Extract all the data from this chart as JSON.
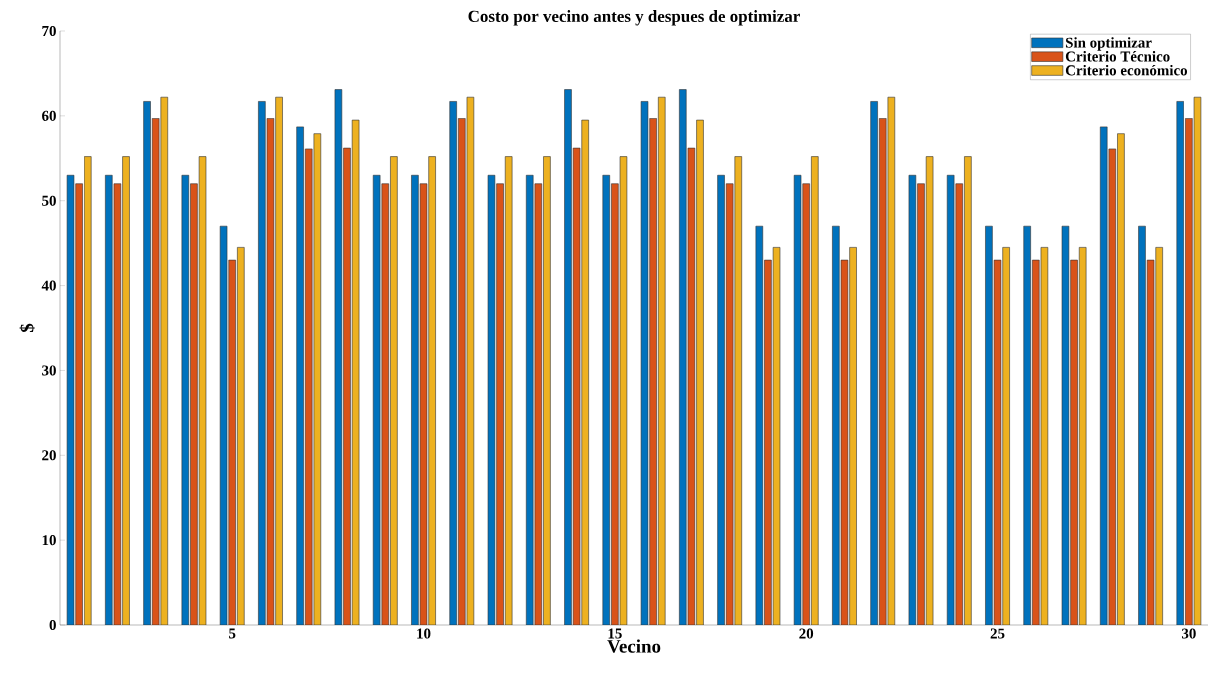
{
  "chart_data": {
    "type": "bar",
    "title": "Costo por vecino antes y despues de optimizar",
    "xlabel": "Vecino",
    "ylabel": "$",
    "x": [
      1,
      2,
      3,
      4,
      5,
      6,
      7,
      8,
      9,
      10,
      11,
      12,
      13,
      14,
      15,
      16,
      17,
      18,
      19,
      20,
      21,
      22,
      23,
      24,
      25,
      26,
      27,
      28,
      29,
      30
    ],
    "xlim": [
      0.5,
      30.5
    ],
    "xticks": [
      5,
      10,
      15,
      20,
      25,
      30
    ],
    "ylim": [
      0,
      70
    ],
    "yticks": [
      0,
      10,
      20,
      30,
      40,
      50,
      60,
      70
    ],
    "series": [
      {
        "name": "Sin optimizar",
        "color": "#0072bd",
        "values": [
          53,
          53,
          61.7,
          53,
          47,
          61.7,
          58.7,
          63.1,
          53,
          53,
          61.7,
          53,
          53,
          63.1,
          53,
          61.7,
          63.1,
          53,
          47,
          53,
          47,
          61.7,
          53,
          53,
          47,
          47,
          47,
          58.7,
          47,
          61.7
        ]
      },
      {
        "name": "Criterio Técnico",
        "color": "#d95319",
        "values": [
          52,
          52,
          59.7,
          52,
          43,
          59.7,
          56.1,
          56.2,
          52,
          52,
          59.7,
          52,
          52,
          56.2,
          52,
          59.7,
          56.2,
          52,
          43,
          52,
          43,
          59.7,
          52,
          52,
          43,
          43,
          43,
          56.1,
          43,
          59.7
        ]
      },
      {
        "name": "Criterio económico",
        "color": "#edb120",
        "values": [
          55.2,
          55.2,
          62.2,
          55.2,
          44.5,
          62.2,
          57.9,
          59.5,
          55.2,
          55.2,
          62.2,
          55.2,
          55.2,
          59.5,
          55.2,
          62.2,
          59.5,
          55.2,
          44.5,
          55.2,
          44.5,
          62.2,
          55.2,
          55.2,
          44.5,
          44.5,
          44.5,
          57.9,
          44.5,
          62.2
        ]
      }
    ],
    "grid": false,
    "legend": "top right"
  }
}
